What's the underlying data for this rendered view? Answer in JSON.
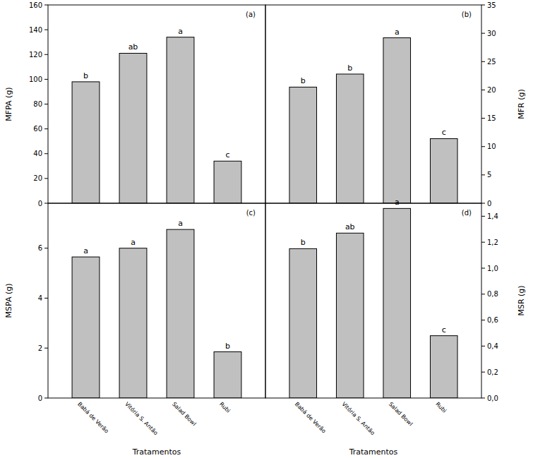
{
  "chart_data": [
    {
      "type": "bar",
      "title": "(a)",
      "y_label": "MFPA (g)",
      "categories": [
        null,
        null,
        null,
        null
      ],
      "values": [
        98,
        121,
        134,
        34
      ],
      "color": "#c0c0c0",
      "annotations": [
        "b",
        "ab",
        "a",
        "c"
      ],
      "ylim": [
        0,
        160
      ],
      "yticks": [
        0,
        20,
        40,
        60,
        80,
        100,
        120,
        140,
        160
      ],
      "tick_labels": "y"
    },
    {
      "type": "bar",
      "title": "(b)",
      "y_label": "MFR (g)",
      "categories": [
        null,
        null,
        null,
        null
      ],
      "values": [
        20.5,
        22.8,
        29.2,
        11.4
      ],
      "color": "#c0c0c0",
      "annotations": [
        "b",
        "b",
        "a",
        "c"
      ],
      "ylim": [
        0,
        35
      ],
      "yticks": [
        0,
        5,
        10,
        15,
        20,
        25,
        30,
        35
      ],
      "tick_labels": "y"
    },
    {
      "type": "bar",
      "title": "(c)",
      "y_label": "MSPA (g)",
      "x_label": "Tratamentos",
      "categories": [
        "Babá de Verão",
        "Vitória S. Antão",
        "Salad Bowl",
        "Rubi"
      ],
      "values": [
        5.65,
        6.0,
        6.75,
        1.85
      ],
      "color": "#c0c0c0",
      "annotations": [
        "a",
        "a",
        "a",
        "b"
      ],
      "ylim": [
        0,
        7.8
      ],
      "yticks": [
        0,
        2,
        4,
        6
      ]
    },
    {
      "type": "bar",
      "title": "(d)",
      "y_label": "MSR (g)",
      "x_label": "Tratamentos",
      "categories": [
        "Babá de Verão",
        "Vitória S. Antão",
        "Salad Bowl",
        "Rubi"
      ],
      "values": [
        1.15,
        1.27,
        1.46,
        0.48
      ],
      "color": "#c0c0c0",
      "annotations": [
        "b",
        "ab",
        "a",
        "c"
      ],
      "ylim": [
        0,
        1.5
      ],
      "yticks": [
        {
          "value": 0,
          "label": "0,0"
        },
        {
          "value": 0.2,
          "label": "0,2"
        },
        {
          "value": 0.4,
          "label": "0,4"
        },
        {
          "value": 0.6,
          "label": "0,6"
        },
        {
          "value": 0.8,
          "label": "0,8"
        },
        {
          "value": 1.0,
          "label": "1,0"
        },
        {
          "value": 1.2,
          "label": "1,2"
        },
        {
          "value": 1.4,
          "label": "1,4"
        }
      ]
    }
  ]
}
